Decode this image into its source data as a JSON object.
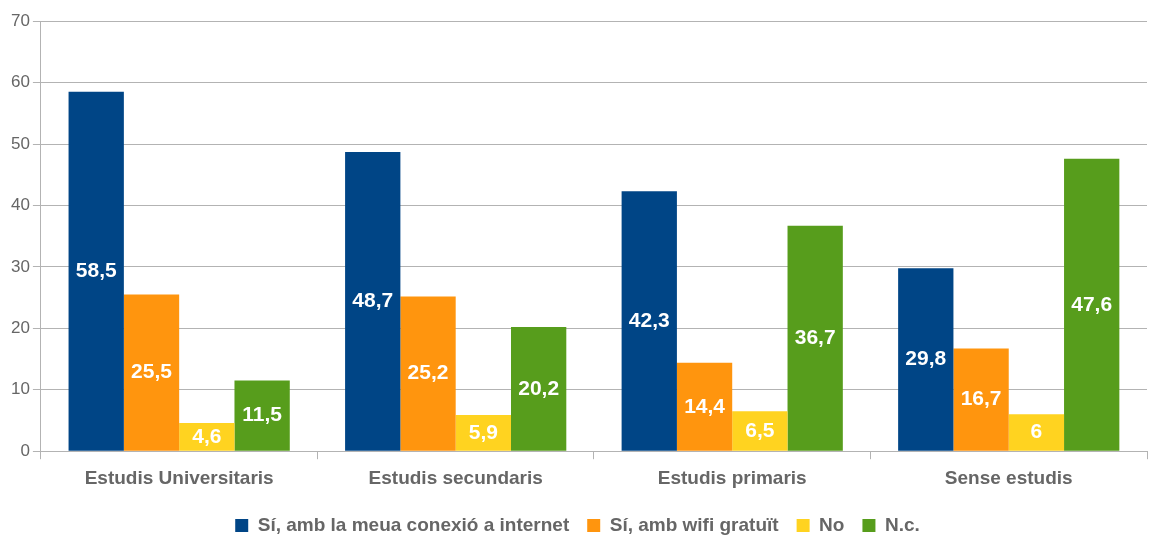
{
  "chart_data": {
    "type": "bar",
    "categories": [
      "Estudis Universitaris",
      "Estudis secundaris",
      "Estudis primaris",
      "Sense estudis"
    ],
    "series": [
      {
        "name": "Sí, amb la meua conexió a internet",
        "color": "#004586",
        "values": [
          58.5,
          48.7,
          42.3,
          29.8
        ],
        "value_labels": [
          "58,5",
          "48,7",
          "42,3",
          "29,8"
        ]
      },
      {
        "name": "Sí, amb wifi gratuït",
        "color": "#ff950e",
        "values": [
          25.5,
          25.2,
          14.4,
          16.7
        ],
        "value_labels": [
          "25,5",
          "25,2",
          "14,4",
          "16,7"
        ]
      },
      {
        "name": "No",
        "color": "#ffd320",
        "values": [
          4.6,
          5.9,
          6.5,
          6
        ],
        "value_labels": [
          "4,6",
          "5,9",
          "6,5",
          "6"
        ]
      },
      {
        "name": "N.c.",
        "color": "#579d1c",
        "values": [
          11.5,
          20.2,
          36.7,
          47.6
        ],
        "value_labels": [
          "11,5",
          "20,2",
          "36,7",
          "47,6"
        ]
      }
    ],
    "ylim": [
      0,
      70
    ],
    "yticks": [
      0,
      10,
      20,
      30,
      40,
      50,
      60,
      70
    ],
    "grid": "y",
    "legend": "bottom"
  }
}
